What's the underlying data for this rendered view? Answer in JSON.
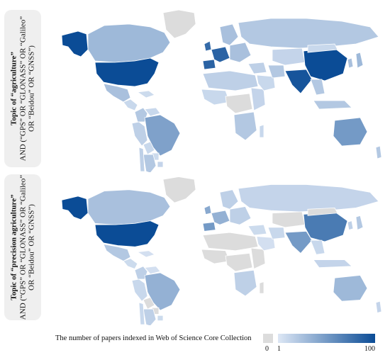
{
  "panels": [
    {
      "label_lines": [
        "Topic of “agriculture”",
        "AND (“GPS” OR “GLONASS” OR “Galileo”",
        "OR “Beidou” OR “GNSS”)"
      ],
      "countries": {
        "usa": 1.0,
        "alaska": 1.0,
        "canada": 0.3,
        "mexico": 0.25,
        "greenland": 0.0,
        "central_america": 0.1,
        "caribbean": 0.08,
        "colombia": 0.2,
        "venezuela": 0.1,
        "ecuador_peru": 0.15,
        "brazil": 0.45,
        "bolivia": 0.1,
        "paraguay": 0.08,
        "argentina": 0.2,
        "chile": 0.15,
        "uruguay": 0.12,
        "iberia": 0.85,
        "western_europe": 0.85,
        "uk": 0.8,
        "scandinavia": 0.25,
        "eastern_europe": 0.25,
        "russia": 0.2,
        "north_africa": 0.15,
        "west_africa": 0.1,
        "central_africa": 0.0,
        "east_africa": 0.12,
        "southern_africa": 0.2,
        "madagascar": 0.1,
        "middle_east": 0.15,
        "arabia": 0.1,
        "iran": 0.2,
        "central_asia": 0.12,
        "india": 0.95,
        "china": 1.0,
        "mongolia": 0.1,
        "se_asia": 0.2,
        "japan": 0.3,
        "korea": 0.25,
        "indonesia": 0.2,
        "australia": 0.5,
        "new_zealand": 0.2
      }
    },
    {
      "label_lines": [
        "Topic of “precision agriculture”",
        "AND (“GPS” OR “GLONASS” OR “Galileo”",
        "OR “Beidou” OR “GNSS”)"
      ],
      "countries": {
        "usa": 1.0,
        "alaska": 1.0,
        "canada": 0.25,
        "mexico": 0.2,
        "greenland": 0.0,
        "central_america": 0.08,
        "caribbean": 0.05,
        "colombia": 0.15,
        "venezuela": 0.05,
        "ecuador_peru": 0.1,
        "brazil": 0.35,
        "bolivia": 0.0,
        "paraguay": 0.0,
        "argentina": 0.15,
        "chile": 0.1,
        "uruguay": 0.08,
        "iberia": 0.5,
        "western_europe": 0.35,
        "uk": 0.4,
        "scandinavia": 0.15,
        "eastern_europe": 0.15,
        "russia": 0.12,
        "north_africa": 0.0,
        "west_africa": 0.0,
        "central_africa": 0.0,
        "east_africa": 0.0,
        "southern_africa": 0.15,
        "madagascar": 0.0,
        "middle_east": 0.08,
        "arabia": 0.05,
        "iran": 0.1,
        "central_asia": 0.0,
        "india": 0.5,
        "china": 0.7,
        "mongolia": 0.0,
        "se_asia": 0.1,
        "japan": 0.2,
        "korea": 0.15,
        "indonesia": 0.12,
        "australia": 0.3,
        "new_zealand": 0.12
      }
    }
  ],
  "legend": {
    "caption": "The number of papers indexed in Web of Science Core Collection",
    "zero_label": "0",
    "min_label": "1",
    "max_label": "100",
    "zero_color": "#dcdcdc",
    "ramp_start": "#dde7f5",
    "ramp_end": "#0b4c96"
  }
}
